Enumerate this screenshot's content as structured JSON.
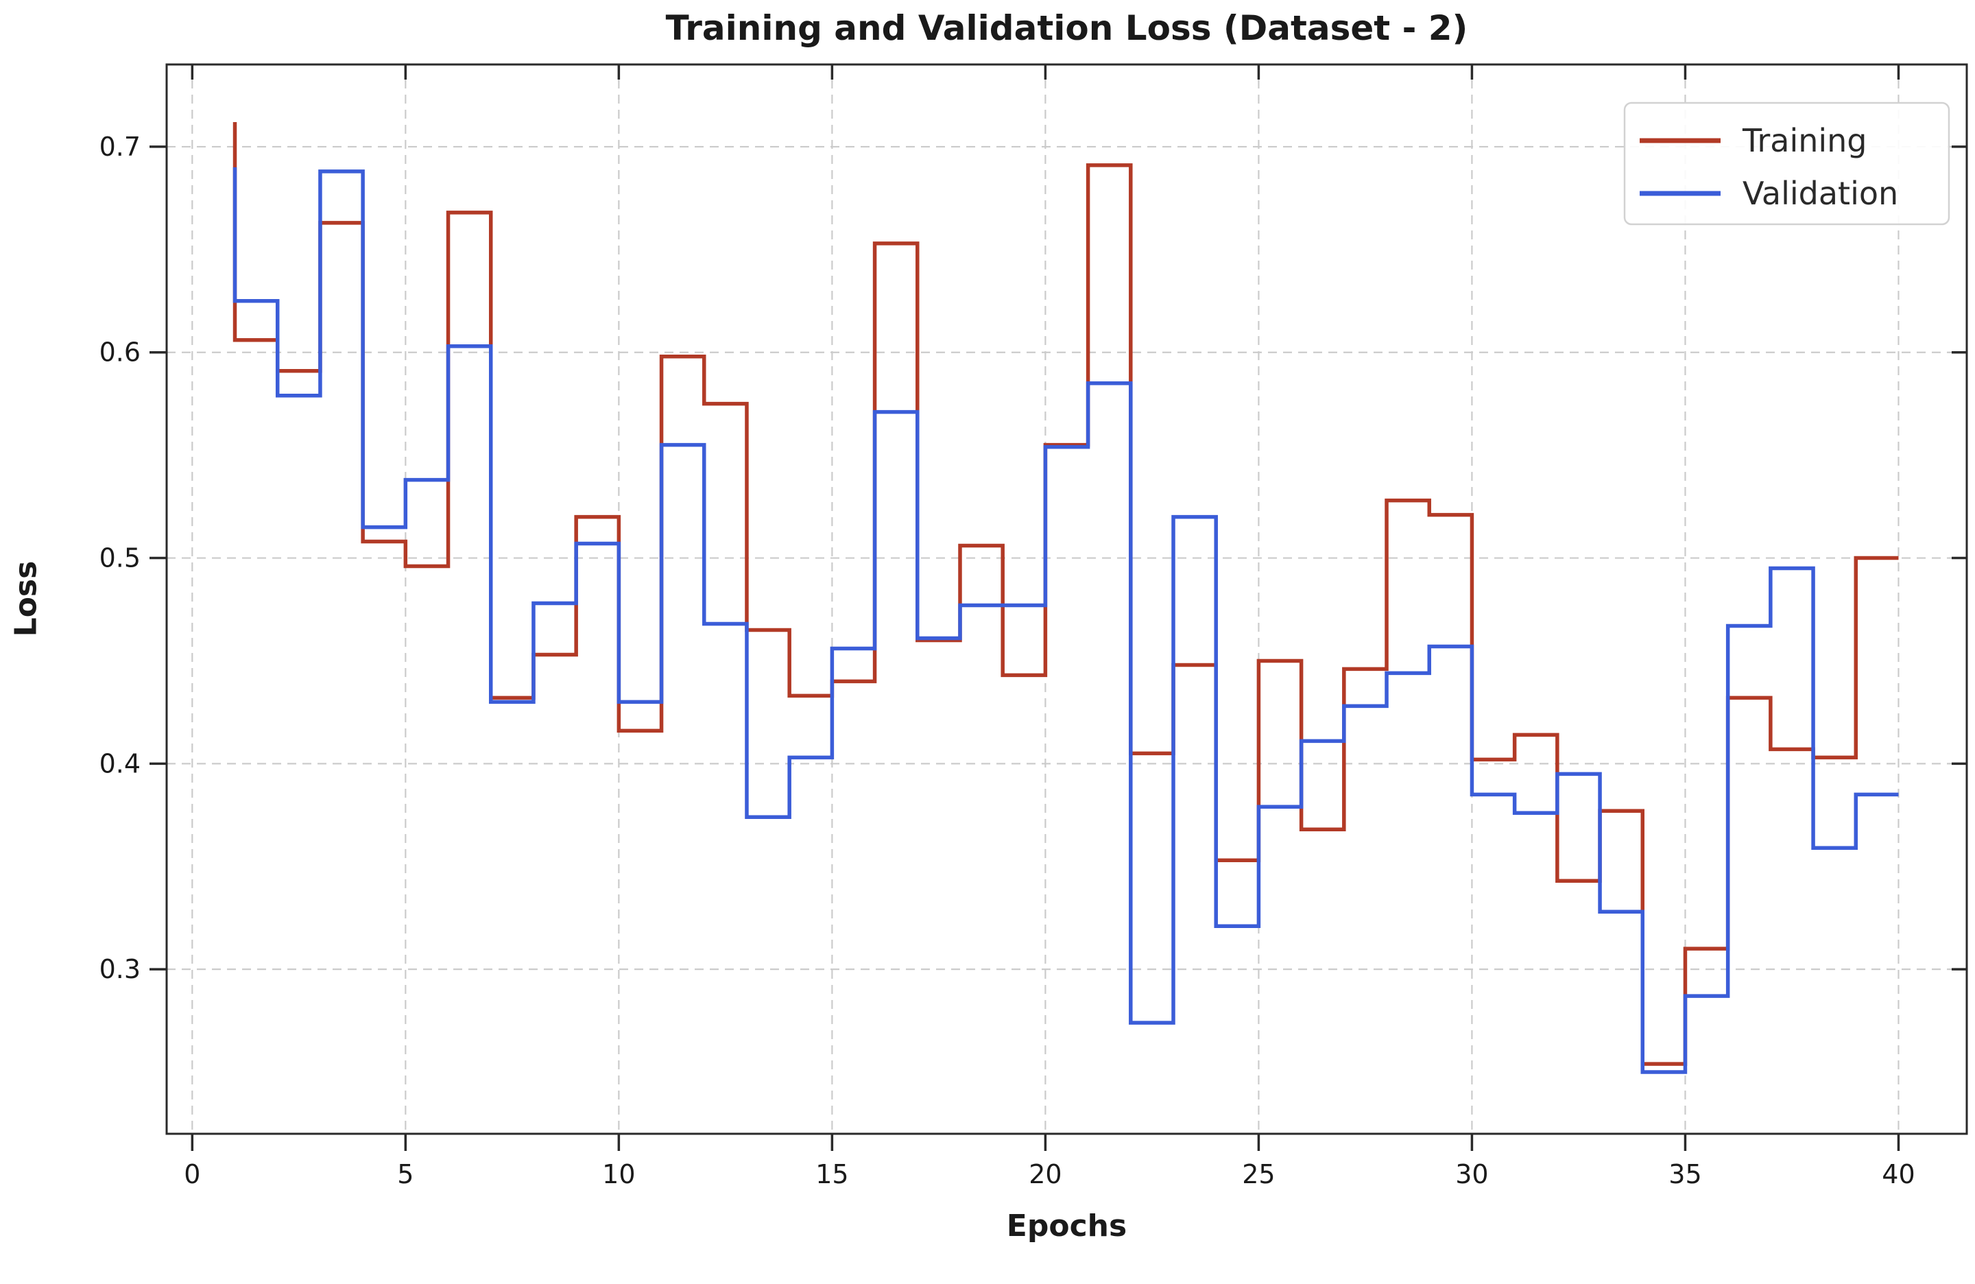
{
  "page": {
    "background": "#ffffff"
  },
  "chart_data": {
    "type": "line",
    "drawstyle": "steps-pre",
    "title": "Training and Validation Loss (Dataset - 2)",
    "xlabel": "Epochs",
    "ylabel": "Loss",
    "x": [
      1,
      2,
      3,
      4,
      5,
      6,
      7,
      8,
      9,
      10,
      11,
      12,
      13,
      14,
      15,
      16,
      17,
      18,
      19,
      20,
      21,
      22,
      23,
      24,
      25,
      26,
      27,
      28,
      29,
      30,
      31,
      32,
      33,
      34,
      35,
      36,
      37,
      38,
      39,
      40
    ],
    "series": [
      {
        "name": "Training",
        "color": "#b23a26",
        "values": [
          0.712,
          0.606,
          0.591,
          0.663,
          0.508,
          0.496,
          0.668,
          0.432,
          0.453,
          0.52,
          0.416,
          0.598,
          0.575,
          0.465,
          0.433,
          0.44,
          0.653,
          0.46,
          0.506,
          0.443,
          0.555,
          0.691,
          0.405,
          0.448,
          0.353,
          0.45,
          0.368,
          0.446,
          0.528,
          0.521,
          0.402,
          0.414,
          0.343,
          0.377,
          0.254,
          0.31,
          0.432,
          0.407,
          0.403,
          0.5
        ]
      },
      {
        "name": "Validation",
        "color": "#3b5dd8",
        "values": [
          0.69,
          0.625,
          0.579,
          0.688,
          0.515,
          0.538,
          0.603,
          0.43,
          0.478,
          0.507,
          0.43,
          0.555,
          0.468,
          0.374,
          0.403,
          0.456,
          0.571,
          0.461,
          0.477,
          0.477,
          0.554,
          0.585,
          0.274,
          0.52,
          0.321,
          0.379,
          0.411,
          0.428,
          0.444,
          0.457,
          0.385,
          0.376,
          0.395,
          0.328,
          0.25,
          0.287,
          0.467,
          0.495,
          0.359,
          0.385
        ]
      }
    ],
    "xticks": [
      0,
      5,
      10,
      15,
      20,
      25,
      30,
      35,
      40
    ],
    "yticks": [
      0.3,
      0.4,
      0.5,
      0.6,
      0.7
    ],
    "xlim": [
      -0.6,
      41.6
    ],
    "ylim": [
      0.22,
      0.74
    ],
    "grid": true,
    "grid_color": "#cbcbcb",
    "spine_color": "#2a2a2a",
    "text_color": "#1a1a1a",
    "legend": {
      "position": "upper right",
      "entries": [
        "Training",
        "Validation"
      ]
    }
  }
}
